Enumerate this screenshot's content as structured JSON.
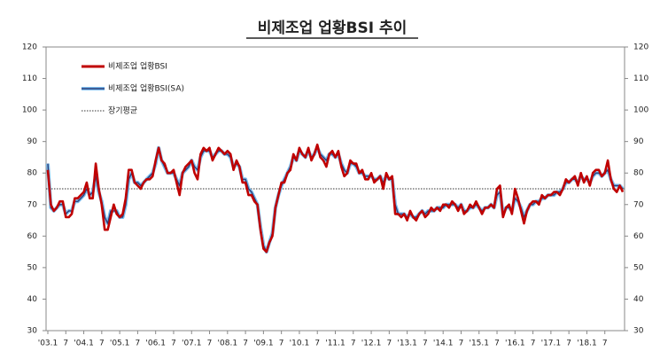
{
  "chart_data": {
    "type": "line",
    "title": "비제조업 업황BSI 추이",
    "categories": [
      "'03.1",
      null,
      null,
      null,
      null,
      null,
      "7",
      null,
      null,
      null,
      null,
      null,
      "'04.1",
      null,
      null,
      null,
      null,
      null,
      "7",
      null,
      null,
      null,
      null,
      null,
      "'05.1",
      null,
      null,
      null,
      null,
      null,
      "7",
      null,
      null,
      null,
      null,
      null,
      "'06.1",
      null,
      null,
      null,
      null,
      null,
      "7",
      null,
      null,
      null,
      null,
      null,
      "'07.1",
      null,
      null,
      null,
      null,
      null,
      "7",
      null,
      null,
      null,
      null,
      null,
      "'08.1",
      null,
      null,
      null,
      null,
      null,
      "7",
      null,
      null,
      null,
      null,
      null,
      "'09.1",
      null,
      null,
      null,
      null,
      null,
      "7",
      null,
      null,
      null,
      null,
      null,
      "'10.1",
      null,
      null,
      null,
      null,
      null,
      "7",
      null,
      null,
      null,
      null,
      null,
      "'11.1",
      null,
      null,
      null,
      null,
      null,
      "7",
      null,
      null,
      null,
      null,
      null,
      "'12.1",
      null,
      null,
      null,
      null,
      null,
      "7",
      null,
      null,
      null,
      null,
      null,
      "'13.1",
      null,
      null,
      null,
      null,
      null,
      "7",
      null,
      null,
      null,
      null,
      null,
      "'14.1",
      null,
      null,
      null,
      null,
      null,
      "7",
      null,
      null,
      null,
      null,
      null,
      "'15.1",
      null,
      null,
      null,
      null,
      null,
      "7",
      null,
      null,
      null,
      null,
      null,
      "'16.1",
      null,
      null,
      null,
      null,
      null,
      "7",
      null,
      null,
      null,
      null,
      null,
      "'17.1",
      null,
      null,
      null,
      null,
      null,
      "7",
      null,
      null,
      null,
      null,
      null,
      "'18.1",
      null,
      null,
      null,
      null,
      null,
      "7",
      null,
      null,
      null,
      null,
      null,
      null
    ],
    "series": [
      {
        "name": "비제조업 업황BSI",
        "color": "#c00000",
        "values": [
          81,
          70,
          68,
          69,
          71,
          71,
          66,
          66,
          67,
          72,
          72,
          73,
          74,
          77,
          72,
          72,
          83,
          75,
          70,
          62,
          62,
          66,
          70,
          67,
          66,
          67,
          72,
          81,
          81,
          77,
          76,
          75,
          77,
          78,
          78,
          79,
          84,
          88,
          84,
          83,
          80,
          80,
          81,
          77,
          73,
          80,
          82,
          83,
          84,
          80,
          78,
          86,
          88,
          87,
          88,
          84,
          86,
          88,
          87,
          86,
          87,
          86,
          81,
          84,
          82,
          77,
          77,
          73,
          73,
          71,
          70,
          62,
          56,
          55,
          58,
          60,
          69,
          73,
          77,
          77,
          80,
          81,
          86,
          84,
          88,
          86,
          85,
          88,
          84,
          86,
          89,
          85,
          84,
          82,
          86,
          87,
          85,
          87,
          82,
          79,
          80,
          84,
          83,
          83,
          80,
          81,
          78,
          78,
          80,
          77,
          78,
          79,
          75,
          80,
          78,
          79,
          67,
          67,
          66,
          67,
          65,
          68,
          66,
          65,
          67,
          68,
          66,
          67,
          69,
          68,
          69,
          68,
          70,
          70,
          69,
          71,
          70,
          68,
          70,
          67,
          68,
          70,
          69,
          71,
          69,
          67,
          69,
          69,
          70,
          69,
          75,
          76,
          66,
          69,
          70,
          67,
          75,
          72,
          68,
          64,
          68,
          70,
          71,
          71,
          70,
          73,
          72,
          73,
          73,
          74,
          74,
          73,
          75,
          78,
          77,
          78,
          79,
          76,
          80,
          77,
          79,
          76,
          80,
          81,
          81,
          79,
          80,
          84,
          78,
          75,
          74,
          76,
          74
        ]
      },
      {
        "name": "비제조업 업황BSI(SA)",
        "color": "#7fbfef",
        "values": [
          83,
          69,
          68,
          69,
          70,
          70,
          67,
          68,
          68,
          71,
          71,
          72,
          73,
          75,
          73,
          74,
          79,
          74,
          71,
          66,
          64,
          68,
          68,
          68,
          66,
          66,
          70,
          78,
          80,
          77,
          77,
          76,
          77,
          78,
          79,
          80,
          83,
          88,
          84,
          82,
          80,
          80,
          80,
          78,
          76,
          80,
          81,
          82,
          84,
          82,
          81,
          85,
          87,
          87,
          87,
          85,
          86,
          87,
          87,
          86,
          86,
          85,
          82,
          83,
          82,
          78,
          78,
          75,
          74,
          72,
          70,
          63,
          57,
          55,
          58,
          61,
          69,
          73,
          76,
          78,
          80,
          82,
          85,
          84,
          87,
          86,
          85,
          87,
          85,
          86,
          88,
          86,
          85,
          84,
          86,
          86,
          85,
          86,
          83,
          81,
          80,
          83,
          83,
          82,
          80,
          80,
          79,
          79,
          79,
          78,
          78,
          79,
          77,
          79,
          78,
          78,
          70,
          67,
          67,
          67,
          66,
          67,
          66,
          66,
          67,
          68,
          67,
          68,
          68,
          68,
          69,
          69,
          69,
          70,
          70,
          70,
          70,
          69,
          70,
          68,
          68,
          69,
          69,
          70,
          69,
          68,
          69,
          69,
          70,
          69,
          73,
          74,
          67,
          69,
          69,
          68,
          72,
          71,
          69,
          66,
          68,
          70,
          70,
          71,
          71,
          72,
          72,
          73,
          73,
          73,
          74,
          74,
          75,
          77,
          77,
          78,
          78,
          77,
          79,
          78,
          78,
          77,
          79,
          80,
          80,
          79,
          80,
          81,
          78,
          76,
          76,
          76,
          75
        ]
      }
    ],
    "reference_line": {
      "name": "장기평균",
      "value": 75,
      "color": "#333333"
    },
    "ylim": [
      30,
      120
    ],
    "yticks": [
      30,
      40,
      50,
      60,
      70,
      80,
      90,
      100,
      110,
      120
    ],
    "y2lim": [
      30,
      120
    ],
    "y2ticks": [
      30,
      40,
      50,
      60,
      70,
      80,
      90,
      100,
      110,
      120
    ],
    "legend": "top-left",
    "grid": false
  }
}
